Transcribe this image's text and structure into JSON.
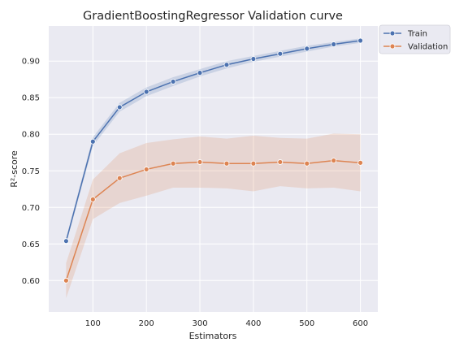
{
  "chart_data": {
    "type": "line",
    "title": "GradientBoostingRegressor Validation curve",
    "xlabel": "Estimators",
    "ylabel": "R²-score",
    "x": [
      50,
      100,
      150,
      200,
      250,
      300,
      350,
      400,
      450,
      500,
      550,
      600
    ],
    "xticks": [
      100,
      200,
      300,
      400,
      500,
      600
    ],
    "yticks": [
      0.6,
      0.65,
      0.7,
      0.75,
      0.8,
      0.85,
      0.9
    ],
    "xlim": [
      17.5,
      632.5
    ],
    "ylim": [
      0.557,
      0.948
    ],
    "grid": true,
    "legend_position": "outside-top-right",
    "series": [
      {
        "name": "Train",
        "color": "#4c72b0",
        "values": [
          0.654,
          0.79,
          0.837,
          0.858,
          0.872,
          0.884,
          0.895,
          0.903,
          0.91,
          0.917,
          0.923,
          0.928
        ],
        "band_lower": [
          0.65,
          0.784,
          0.831,
          0.852,
          0.866,
          0.879,
          0.89,
          0.899,
          0.906,
          0.913,
          0.92,
          0.925
        ],
        "band_upper": [
          0.658,
          0.796,
          0.843,
          0.864,
          0.878,
          0.889,
          0.9,
          0.907,
          0.914,
          0.921,
          0.926,
          0.931
        ]
      },
      {
        "name": "Validation",
        "color": "#dd8452",
        "values": [
          0.6,
          0.711,
          0.74,
          0.752,
          0.76,
          0.762,
          0.76,
          0.76,
          0.762,
          0.76,
          0.764,
          0.761
        ],
        "band_lower": [
          0.576,
          0.684,
          0.706,
          0.716,
          0.727,
          0.727,
          0.726,
          0.722,
          0.729,
          0.726,
          0.727,
          0.722
        ],
        "band_upper": [
          0.624,
          0.738,
          0.774,
          0.788,
          0.793,
          0.797,
          0.794,
          0.798,
          0.795,
          0.794,
          0.801,
          0.8
        ]
      }
    ]
  }
}
